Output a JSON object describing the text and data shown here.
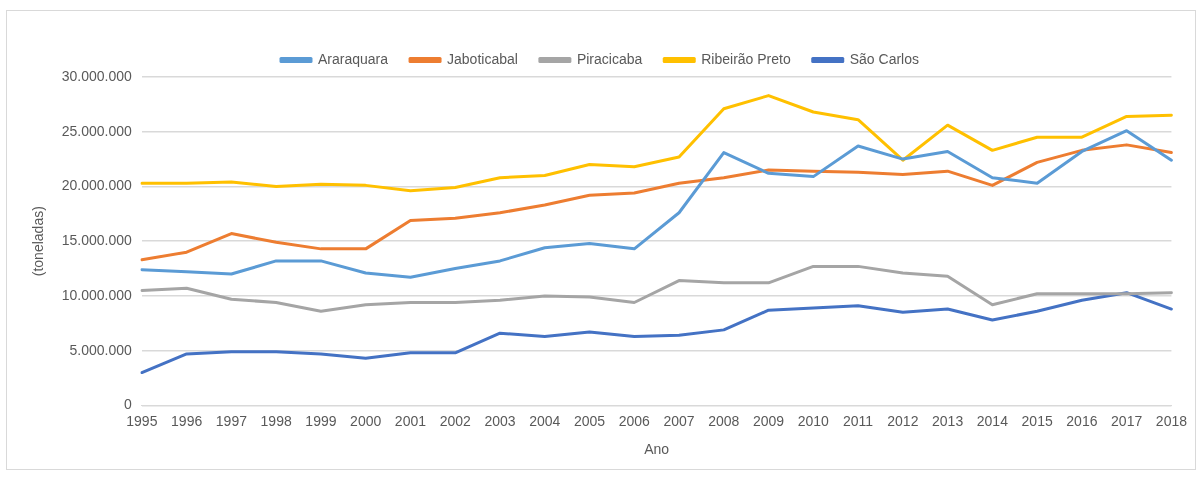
{
  "chart_data": {
    "type": "line",
    "xlabel": "Ano",
    "ylabel": "(toneladas)",
    "categories": [
      "1995",
      "1996",
      "1997",
      "1998",
      "1999",
      "2000",
      "2001",
      "2002",
      "2003",
      "2004",
      "2005",
      "2006",
      "2007",
      "2008",
      "2009",
      "2010",
      "2011",
      "2012",
      "2013",
      "2014",
      "2015",
      "2016",
      "2017",
      "2018"
    ],
    "series": [
      {
        "name": "Araraquara",
        "color": "#5b9bd5",
        "values": [
          12400000,
          12200000,
          12000000,
          13200000,
          13200000,
          12100000,
          11700000,
          12500000,
          13200000,
          14400000,
          14800000,
          14300000,
          17600000,
          23100000,
          21200000,
          20900000,
          23700000,
          22500000,
          23200000,
          20800000,
          20300000,
          23200000,
          25100000,
          22400000
        ]
      },
      {
        "name": "Jaboticabal",
        "color": "#ed7d31",
        "values": [
          13300000,
          14000000,
          15700000,
          14900000,
          14300000,
          14300000,
          16900000,
          17100000,
          17600000,
          18300000,
          19200000,
          19400000,
          20300000,
          20800000,
          21500000,
          21400000,
          21300000,
          21100000,
          21400000,
          20100000,
          22200000,
          23300000,
          23800000,
          23100000
        ]
      },
      {
        "name": "Piracicaba",
        "color": "#a5a5a5",
        "values": [
          10500000,
          10700000,
          9700000,
          9400000,
          8600000,
          9200000,
          9400000,
          9400000,
          9600000,
          10000000,
          9900000,
          9400000,
          11400000,
          11200000,
          11200000,
          12700000,
          12700000,
          12100000,
          11800000,
          9200000,
          10200000,
          10200000,
          10200000,
          10300000
        ]
      },
      {
        "name": "Ribeirão Preto",
        "color": "#ffc000",
        "values": [
          20300000,
          20300000,
          20400000,
          20000000,
          20200000,
          20100000,
          19600000,
          19900000,
          20800000,
          21000000,
          22000000,
          21800000,
          22700000,
          27100000,
          28300000,
          26800000,
          26100000,
          22400000,
          25600000,
          23300000,
          24500000,
          24500000,
          26400000,
          26500000
        ]
      },
      {
        "name": "São Carlos",
        "color": "#4472c4",
        "values": [
          3000000,
          4700000,
          4900000,
          4900000,
          4700000,
          4300000,
          4800000,
          4800000,
          6600000,
          6300000,
          6700000,
          6300000,
          6400000,
          6900000,
          8700000,
          8900000,
          9100000,
          8500000,
          8800000,
          7800000,
          8600000,
          9600000,
          10300000,
          8800000
        ]
      }
    ],
    "ylim": [
      0,
      30000000
    ],
    "yticks": [
      0,
      {
        "value": 5000000,
        "label": "5.000.000"
      },
      {
        "value": 10000000,
        "label": "10.000.000"
      },
      {
        "value": 15000000,
        "label": "15.000.000"
      },
      {
        "value": 20000000,
        "label": "20.000.000"
      },
      {
        "value": 25000000,
        "label": "25.000.000"
      },
      {
        "value": 30000000,
        "label": "30.000.000"
      }
    ],
    "grid": "y",
    "legend": "top",
    "marker": "none",
    "line_style": "solid"
  }
}
